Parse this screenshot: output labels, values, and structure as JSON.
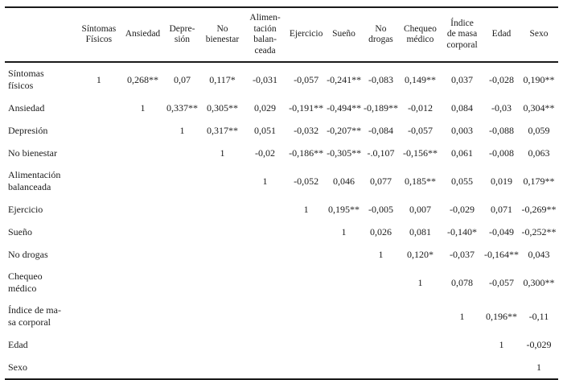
{
  "colors": {
    "background": "#ffffff",
    "text": "#1c1c1c",
    "rule": "#1a1a1a"
  },
  "table": {
    "corner_label": "",
    "columns": [
      "Síntomas\nFísicos",
      "Ansiedad",
      "Depre-\nsión",
      "No\nbienestar",
      "Alimen-\ntación\nbalan-\nceada",
      "Ejercicio",
      "Sueño",
      "No\ndrogas",
      "Chequeo\nmédico",
      "Índice\nde masa\ncorporal",
      "Edad",
      "Sexo"
    ],
    "rows": [
      {
        "label": "Síntomas\nfísicos",
        "values": [
          "1",
          "0,268**",
          "0,07",
          "0,117*",
          "-0,031",
          "-0,057",
          "-0,241**",
          "-0,083",
          "0,149**",
          "0,037",
          "-0,028",
          "0,190**"
        ]
      },
      {
        "label": "Ansiedad",
        "values": [
          "",
          "1",
          "0,337**",
          "0,305**",
          "0,029",
          "-0,191**",
          "-0,494**",
          "-0,189**",
          "-0,012",
          "0,084",
          "-0,03",
          "0,304**"
        ]
      },
      {
        "label": "Depresión",
        "values": [
          "",
          "",
          "1",
          "0,317**",
          "0,051",
          "-0,032",
          "-0,207**",
          "-0,084",
          "-0,057",
          "0,003",
          "-0,088",
          "0,059"
        ]
      },
      {
        "label": "No bienestar",
        "values": [
          "",
          "",
          "",
          "1",
          "-0,02",
          "-0,186**",
          "-0,305**",
          "-.0,107",
          "-0,156**",
          "0,061",
          "-0,008",
          "0,063"
        ]
      },
      {
        "label": "Alimentación\nbalanceada",
        "values": [
          "",
          "",
          "",
          "",
          "1",
          "-0,052",
          "0,046",
          "0,077",
          "0,185**",
          "0,055",
          "0,019",
          "0,179**"
        ]
      },
      {
        "label": "Ejercicio",
        "values": [
          "",
          "",
          "",
          "",
          "",
          "1",
          "0,195**",
          "-0,005",
          "0,007",
          "-0,029",
          "0,071",
          "-0,269**"
        ]
      },
      {
        "label": "Sueño",
        "values": [
          "",
          "",
          "",
          "",
          "",
          "",
          "1",
          "0,026",
          "0,081",
          "-0,140*",
          "-0,049",
          "-0,252**"
        ]
      },
      {
        "label": "No drogas",
        "values": [
          "",
          "",
          "",
          "",
          "",
          "",
          "",
          "1",
          "0,120*",
          "-0,037",
          "-0,164**",
          "0,043"
        ]
      },
      {
        "label": "Chequeo\nmédico",
        "values": [
          "",
          "",
          "",
          "",
          "",
          "",
          "",
          "",
          "1",
          "0,078",
          "-0,057",
          "0,300**"
        ]
      },
      {
        "label": "Índice de ma-\nsa corporal",
        "values": [
          "",
          "",
          "",
          "",
          "",
          "",
          "",
          "",
          "",
          "1",
          "0,196**",
          "-0,11"
        ]
      },
      {
        "label": "Edad",
        "values": [
          "",
          "",
          "",
          "",
          "",
          "",
          "",
          "",
          "",
          "",
          "1",
          "-0,029"
        ]
      },
      {
        "label": "Sexo",
        "values": [
          "",
          "",
          "",
          "",
          "",
          "",
          "",
          "",
          "",
          "",
          "",
          "1"
        ]
      }
    ]
  }
}
